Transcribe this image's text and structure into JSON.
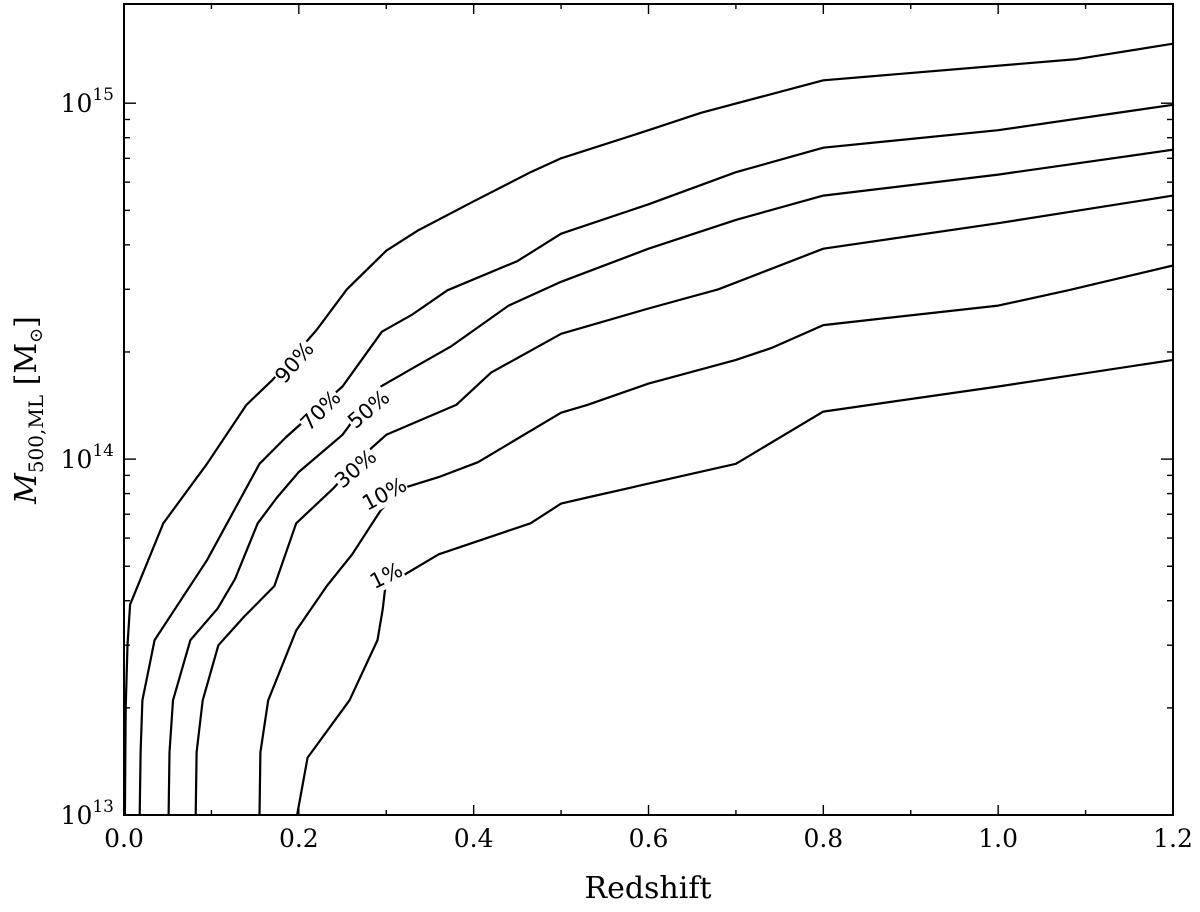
{
  "chart_data": {
    "type": "line",
    "title": "",
    "xlabel": "Redshift",
    "ylabel": {
      "symbol": "M",
      "subscript": "500,ML",
      "unit_open": "[M",
      "unit_symbol": "⊙",
      "unit_close": "]"
    },
    "xlim": [
      0.0,
      1.2
    ],
    "ylim": [
      10000000000000.0,
      1900000000000000.0
    ],
    "yscale": "log",
    "grid": false,
    "x_ticks": [
      0.0,
      0.2,
      0.4,
      0.6,
      0.8,
      1.0,
      1.2
    ],
    "x_tick_labels": [
      "0.0",
      "0.2",
      "0.4",
      "0.6",
      "0.8",
      "1.0",
      "1.2"
    ],
    "y_major_ticks": [
      10000000000000.0,
      100000000000000.0,
      1000000000000000.0
    ],
    "y_tick_labels": [
      {
        "base": "10",
        "exp": "13"
      },
      {
        "base": "10",
        "exp": "14"
      },
      {
        "base": "10",
        "exp": "15"
      }
    ],
    "series": [
      {
        "name": "90%",
        "label_at": [
          0.195,
          187000000000000.0
        ],
        "label_angle": -49,
        "points": [
          [
            0.001,
            10000000000000.0
          ],
          [
            0.002,
            20000000000000.0
          ],
          [
            0.004,
            30000000000000.0
          ],
          [
            0.007,
            39000000000000.0
          ],
          [
            0.045,
            66000000000000.0
          ],
          [
            0.095,
            97000000000000.0
          ],
          [
            0.14,
            142000000000000.0
          ],
          [
            0.17,
            167000000000000.0
          ],
          [
            0.22,
            230000000000000.0
          ],
          [
            0.255,
            300000000000000.0
          ],
          [
            0.3,
            385000000000000.0
          ],
          [
            0.337,
            440000000000000.0
          ],
          [
            0.4,
            530000000000000.0
          ],
          [
            0.465,
            640000000000000.0
          ],
          [
            0.5,
            700000000000000.0
          ],
          [
            0.6,
            840000000000000.0
          ],
          [
            0.66,
            940000000000000.0
          ],
          [
            0.8,
            1160000000000000.0
          ],
          [
            1.09,
            1330000000000000.0
          ],
          [
            1.2,
            1470000000000000.0
          ]
        ]
      },
      {
        "name": "70%",
        "label_at": [
          0.225,
          137000000000000.0
        ],
        "label_angle": -45,
        "points": [
          [
            0.018,
            10000000000000.0
          ],
          [
            0.019,
            15000000000000.0
          ],
          [
            0.021,
            21000000000000.0
          ],
          [
            0.035,
            31000000000000.0
          ],
          [
            0.095,
            52000000000000.0
          ],
          [
            0.155,
            97000000000000.0
          ],
          [
            0.185,
            115000000000000.0
          ],
          [
            0.25,
            160000000000000.0
          ],
          [
            0.295,
            228000000000000.0
          ],
          [
            0.33,
            255000000000000.0
          ],
          [
            0.37,
            298000000000000.0
          ],
          [
            0.45,
            360000000000000.0
          ],
          [
            0.5,
            430000000000000.0
          ],
          [
            0.6,
            520000000000000.0
          ],
          [
            0.7,
            640000000000000.0
          ],
          [
            0.8,
            750000000000000.0
          ],
          [
            1.0,
            840000000000000.0
          ],
          [
            1.15,
            950000000000000.0
          ],
          [
            1.2,
            990000000000000.0
          ]
        ]
      },
      {
        "name": "50%",
        "label_at": [
          0.28,
          138000000000000.0
        ],
        "label_angle": -40,
        "points": [
          [
            0.051,
            10000000000000.0
          ],
          [
            0.052,
            15000000000000.0
          ],
          [
            0.056,
            21000000000000.0
          ],
          [
            0.076,
            31000000000000.0
          ],
          [
            0.107,
            38000000000000.0
          ],
          [
            0.127,
            46000000000000.0
          ],
          [
            0.153,
            66000000000000.0
          ],
          [
            0.175,
            78000000000000.0
          ],
          [
            0.2,
            92000000000000.0
          ],
          [
            0.25,
            117000000000000.0
          ],
          [
            0.288,
            157000000000000.0
          ],
          [
            0.33,
            180000000000000.0
          ],
          [
            0.375,
            208000000000000.0
          ],
          [
            0.44,
            270000000000000.0
          ],
          [
            0.5,
            315000000000000.0
          ],
          [
            0.6,
            390000000000000.0
          ],
          [
            0.7,
            470000000000000.0
          ],
          [
            0.8,
            550000000000000.0
          ],
          [
            1.0,
            630000000000000.0
          ],
          [
            1.2,
            740000000000000.0
          ]
        ]
      },
      {
        "name": "30%",
        "label_at": [
          0.265,
          94000000000000.0
        ],
        "label_angle": -40,
        "points": [
          [
            0.082,
            10000000000000.0
          ],
          [
            0.083,
            15000000000000.0
          ],
          [
            0.09,
            21000000000000.0
          ],
          [
            0.108,
            30000000000000.0
          ],
          [
            0.137,
            36000000000000.0
          ],
          [
            0.172,
            44000000000000.0
          ],
          [
            0.197,
            66000000000000.0
          ],
          [
            0.24,
            83000000000000.0
          ],
          [
            0.273,
            102000000000000.0
          ],
          [
            0.3,
            117000000000000.0
          ],
          [
            0.38,
            142000000000000.0
          ],
          [
            0.42,
            175000000000000.0
          ],
          [
            0.5,
            225000000000000.0
          ],
          [
            0.6,
            265000000000000.0
          ],
          [
            0.68,
            300000000000000.0
          ],
          [
            0.8,
            390000000000000.0
          ],
          [
            1.0,
            460000000000000.0
          ],
          [
            1.2,
            550000000000000.0
          ]
        ]
      },
      {
        "name": "10%",
        "label_at": [
          0.298,
          79800000000000.0
        ],
        "label_angle": -28,
        "points": [
          [
            0.155,
            10000000000000.0
          ],
          [
            0.156,
            15000000000000.0
          ],
          [
            0.165,
            21000000000000.0
          ],
          [
            0.197,
            33000000000000.0
          ],
          [
            0.232,
            44000000000000.0
          ],
          [
            0.261,
            54000000000000.0
          ],
          [
            0.294,
            72000000000000.0
          ],
          [
            0.32,
            83000000000000.0
          ],
          [
            0.36,
            89000000000000.0
          ],
          [
            0.405,
            98000000000000.0
          ],
          [
            0.5,
            135000000000000.0
          ],
          [
            0.53,
            142000000000000.0
          ],
          [
            0.6,
            163000000000000.0
          ],
          [
            0.7,
            190000000000000.0
          ],
          [
            0.74,
            205000000000000.0
          ],
          [
            0.8,
            238000000000000.0
          ],
          [
            1.0,
            270000000000000.0
          ],
          [
            1.08,
            298000000000000.0
          ],
          [
            1.2,
            350000000000000.0
          ]
        ]
      },
      {
        "name": "1%",
        "label_at": [
          0.3,
          47000000000000.0
        ],
        "label_angle": -26,
        "points": [
          [
            0.198,
            10000000000000.0
          ],
          [
            0.21,
            14500000000000.0
          ],
          [
            0.258,
            21000000000000.0
          ],
          [
            0.29,
            31000000000000.0
          ],
          [
            0.296,
            38000000000000.0
          ],
          [
            0.299,
            44000000000000.0
          ],
          [
            0.36,
            54000000000000.0
          ],
          [
            0.465,
            66000000000000.0
          ],
          [
            0.5,
            75000000000000.0
          ],
          [
            0.53,
            78000000000000.0
          ],
          [
            0.7,
            97000000000000.0
          ],
          [
            0.8,
            136000000000000.0
          ],
          [
            1.0,
            160000000000000.0
          ],
          [
            1.2,
            190000000000000.0
          ]
        ]
      }
    ]
  }
}
